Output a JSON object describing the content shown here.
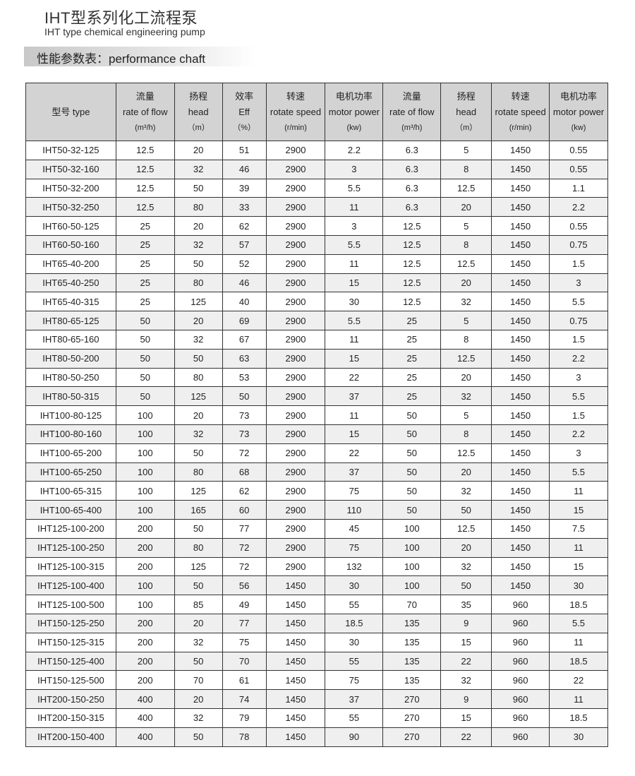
{
  "title_cn": "IHT型系列化工流程泵",
  "title_en": "IHT type chemical engineering pump",
  "section_title": "性能参数表：performance chaft",
  "table": {
    "headers": [
      [
        "型号 type"
      ],
      [
        "流量",
        "rate of flow",
        "(m³/h)"
      ],
      [
        "扬程",
        "head",
        "（m）"
      ],
      [
        "效率",
        "Eff",
        "（%）"
      ],
      [
        "转速",
        "rotate speed",
        "(r/min)"
      ],
      [
        "电机功率",
        "motor power",
        "(kw)"
      ],
      [
        "流量",
        "rate of flow",
        "(m³/h)"
      ],
      [
        "扬程",
        "head",
        "（m）"
      ],
      [
        "转速",
        "rotate speed",
        "(r/min)"
      ],
      [
        "电机功率",
        "motor power",
        "(kw)"
      ]
    ],
    "rows": [
      [
        "IHT50-32-125",
        "12.5",
        "20",
        "51",
        "2900",
        "2.2",
        "6.3",
        "5",
        "1450",
        "0.55"
      ],
      [
        "IHT50-32-160",
        "12.5",
        "32",
        "46",
        "2900",
        "3",
        "6.3",
        "8",
        "1450",
        "0.55"
      ],
      [
        "IHT50-32-200",
        "12.5",
        "50",
        "39",
        "2900",
        "5.5",
        "6.3",
        "12.5",
        "1450",
        "1.1"
      ],
      [
        "IHT50-32-250",
        "12.5",
        "80",
        "33",
        "2900",
        "11",
        "6.3",
        "20",
        "1450",
        "2.2"
      ],
      [
        "IHT60-50-125",
        "25",
        "20",
        "62",
        "2900",
        "3",
        "12.5",
        "5",
        "1450",
        "0.55"
      ],
      [
        "IHT60-50-160",
        "25",
        "32",
        "57",
        "2900",
        "5.5",
        "12.5",
        "8",
        "1450",
        "0.75"
      ],
      [
        "IHT65-40-200",
        "25",
        "50",
        "52",
        "2900",
        "11",
        "12.5",
        "12.5",
        "1450",
        "1.5"
      ],
      [
        "IHT65-40-250",
        "25",
        "80",
        "46",
        "2900",
        "15",
        "12.5",
        "20",
        "1450",
        "3"
      ],
      [
        "IHT65-40-315",
        "25",
        "125",
        "40",
        "2900",
        "30",
        "12.5",
        "32",
        "1450",
        "5.5"
      ],
      [
        "IHT80-65-125",
        "50",
        "20",
        "69",
        "2900",
        "5.5",
        "25",
        "5",
        "1450",
        "0.75"
      ],
      [
        "IHT80-65-160",
        "50",
        "32",
        "67",
        "2900",
        "11",
        "25",
        "8",
        "1450",
        "1.5"
      ],
      [
        "IHT80-50-200",
        "50",
        "50",
        "63",
        "2900",
        "15",
        "25",
        "12.5",
        "1450",
        "2.2"
      ],
      [
        "IHT80-50-250",
        "50",
        "80",
        "53",
        "2900",
        "22",
        "25",
        "20",
        "1450",
        "3"
      ],
      [
        "IHT80-50-315",
        "50",
        "125",
        "50",
        "2900",
        "37",
        "25",
        "32",
        "1450",
        "5.5"
      ],
      [
        "IHT100-80-125",
        "100",
        "20",
        "73",
        "2900",
        "11",
        "50",
        "5",
        "1450",
        "1.5"
      ],
      [
        "IHT100-80-160",
        "100",
        "32",
        "73",
        "2900",
        "15",
        "50",
        "8",
        "1450",
        "2.2"
      ],
      [
        "IHT100-65-200",
        "100",
        "50",
        "72",
        "2900",
        "22",
        "50",
        "12.5",
        "1450",
        "3"
      ],
      [
        "IHT100-65-250",
        "100",
        "80",
        "68",
        "2900",
        "37",
        "50",
        "20",
        "1450",
        "5.5"
      ],
      [
        "IHT100-65-315",
        "100",
        "125",
        "62",
        "2900",
        "75",
        "50",
        "32",
        "1450",
        "11"
      ],
      [
        "IHT100-65-400",
        "100",
        "165",
        "60",
        "2900",
        "110",
        "50",
        "50",
        "1450",
        "15"
      ],
      [
        "IHT125-100-200",
        "200",
        "50",
        "77",
        "2900",
        "45",
        "100",
        "12.5",
        "1450",
        "7.5"
      ],
      [
        "IHT125-100-250",
        "200",
        "80",
        "72",
        "2900",
        "75",
        "100",
        "20",
        "1450",
        "11"
      ],
      [
        "IHT125-100-315",
        "200",
        "125",
        "72",
        "2900",
        "132",
        "100",
        "32",
        "1450",
        "15"
      ],
      [
        "IHT125-100-400",
        "100",
        "50",
        "56",
        "1450",
        "30",
        "100",
        "50",
        "1450",
        "30"
      ],
      [
        "IHT125-100-500",
        "100",
        "85",
        "49",
        "1450",
        "55",
        "70",
        "35",
        "960",
        "18.5"
      ],
      [
        "IHT150-125-250",
        "200",
        "20",
        "77",
        "1450",
        "18.5",
        "135",
        "9",
        "960",
        "5.5"
      ],
      [
        "IHT150-125-315",
        "200",
        "32",
        "75",
        "1450",
        "30",
        "135",
        "15",
        "960",
        "11"
      ],
      [
        "IHT150-125-400",
        "200",
        "50",
        "70",
        "1450",
        "55",
        "135",
        "22",
        "960",
        "18.5"
      ],
      [
        "IHT150-125-500",
        "200",
        "70",
        "61",
        "1450",
        "75",
        "135",
        "32",
        "960",
        "22"
      ],
      [
        "IHT200-150-250",
        "400",
        "20",
        "74",
        "1450",
        "37",
        "270",
        "9",
        "960",
        "11"
      ],
      [
        "IHT200-150-315",
        "400",
        "32",
        "79",
        "1450",
        "55",
        "270",
        "15",
        "960",
        "18.5"
      ],
      [
        "IHT200-150-400",
        "400",
        "50",
        "78",
        "1450",
        "90",
        "270",
        "22",
        "960",
        "30"
      ]
    ]
  }
}
